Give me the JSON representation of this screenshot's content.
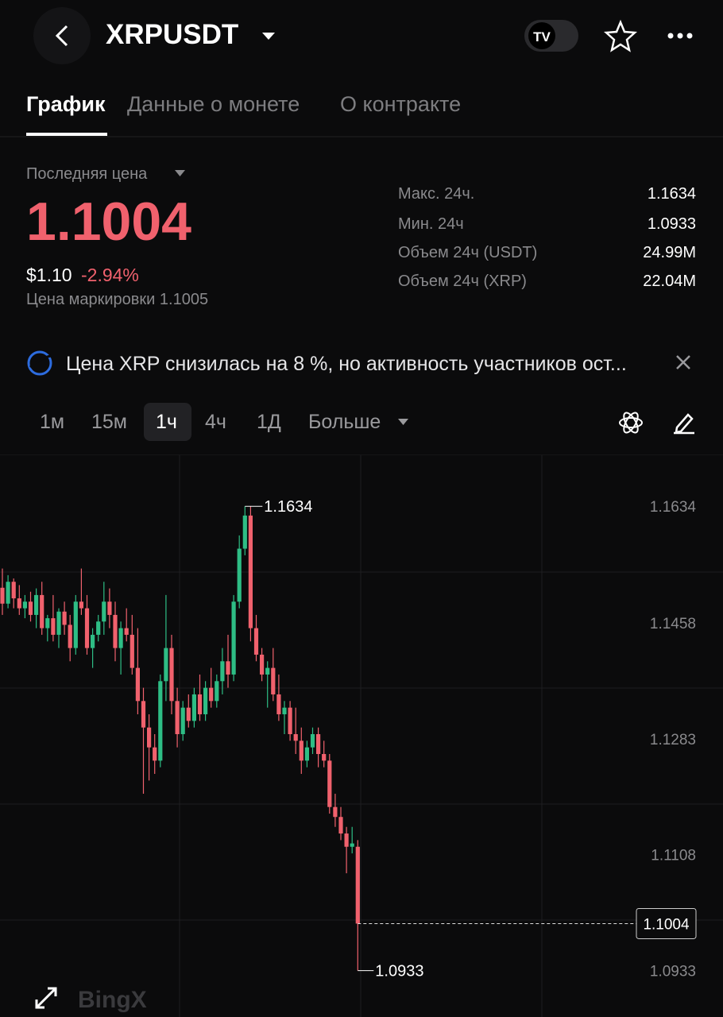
{
  "header": {
    "title": "XRPUSDT"
  },
  "tabs": [
    "График",
    "Данные о монете",
    "О контракте"
  ],
  "price_panel": {
    "last_price_label": "Последняя цена",
    "last_price": "1.1004",
    "usd_price": "$1.10",
    "change": "-2.94%",
    "mark_price": "Цена маркировки 1.1005",
    "stats": [
      {
        "label": "Макс. 24ч.",
        "value": "1.1634"
      },
      {
        "label": "Мин. 24ч",
        "value": "1.0933"
      },
      {
        "label": "Объем 24ч (USDT)",
        "value": "24.99M"
      },
      {
        "label": "Объем 24ч (XRP)",
        "value": "22.04M"
      }
    ]
  },
  "news": "Цена XRP снизилась на 8 %, но активность участников ост...",
  "timeframes": [
    "1м",
    "15м",
    "1ч",
    "4ч",
    "1Д",
    "Больше"
  ],
  "watermark": "BingX",
  "chart_data": {
    "type": "candlestick",
    "up_color": "#2ebd85",
    "down_color": "#f0616d",
    "ylim": [
      1.0863,
      1.1711
    ],
    "yticks": [
      1.1634,
      1.1458,
      1.1283,
      1.1108,
      1.0933
    ],
    "max_marker": 1.1634,
    "min_marker": 1.0933,
    "last_price_marker": 1.1004,
    "open": [
      1.1511,
      1.1487,
      1.152,
      1.1495,
      1.148,
      1.149,
      1.147,
      1.15,
      1.145,
      1.1465,
      1.144,
      1.1475,
      1.1455,
      1.142,
      1.149,
      1.148,
      1.142,
      1.144,
      1.146,
      1.149,
      1.147,
      1.142,
      1.145,
      1.144,
      1.139,
      1.134,
      1.13,
      1.127,
      1.125,
      1.137,
      1.142,
      1.134,
      1.129,
      1.133,
      1.131,
      1.135,
      1.132,
      1.136,
      1.134,
      1.137,
      1.14,
      1.138,
      1.149,
      1.157,
      1.162,
      1.145,
      1.141,
      1.138,
      1.139,
      1.135,
      1.132,
      1.133,
      1.129,
      1.128,
      1.125,
      1.127,
      1.129,
      1.126,
      1.125,
      1.118,
      1.1165,
      1.114,
      1.112,
      1.112
    ],
    "high": [
      1.154,
      1.153,
      1.1525,
      1.1515,
      1.15,
      1.1505,
      1.151,
      1.152,
      1.147,
      1.15,
      1.148,
      1.149,
      1.147,
      1.15,
      1.154,
      1.15,
      1.145,
      1.147,
      1.152,
      1.151,
      1.149,
      1.146,
      1.148,
      1.147,
      1.145,
      1.136,
      1.132,
      1.129,
      1.138,
      1.15,
      1.144,
      1.136,
      1.134,
      1.135,
      1.136,
      1.138,
      1.137,
      1.139,
      1.138,
      1.142,
      1.144,
      1.15,
      1.159,
      1.1634,
      1.1634,
      1.147,
      1.142,
      1.14,
      1.142,
      1.138,
      1.134,
      1.134,
      1.133,
      1.13,
      1.128,
      1.13,
      1.13,
      1.128,
      1.126,
      1.12,
      1.118,
      1.115,
      1.115,
      1.113
    ],
    "low": [
      1.147,
      1.148,
      1.148,
      1.147,
      1.1465,
      1.146,
      1.145,
      1.144,
      1.143,
      1.143,
      1.142,
      1.144,
      1.14,
      1.141,
      1.147,
      1.141,
      1.139,
      1.143,
      1.144,
      1.145,
      1.14,
      1.138,
      1.143,
      1.138,
      1.132,
      1.12,
      1.122,
      1.123,
      1.124,
      1.134,
      1.132,
      1.127,
      1.128,
      1.13,
      1.13,
      1.131,
      1.131,
      1.133,
      1.133,
      1.135,
      1.136,
      1.137,
      1.148,
      1.156,
      1.143,
      1.14,
      1.137,
      1.133,
      1.134,
      1.131,
      1.129,
      1.128,
      1.126,
      1.123,
      1.124,
      1.126,
      1.124,
      1.124,
      1.117,
      1.115,
      1.113,
      1.108,
      1.111,
      1.0933
    ],
    "close": [
      1.1487,
      1.152,
      1.1495,
      1.148,
      1.149,
      1.147,
      1.15,
      1.145,
      1.1465,
      1.144,
      1.1475,
      1.1455,
      1.142,
      1.149,
      1.148,
      1.142,
      1.144,
      1.146,
      1.149,
      1.147,
      1.142,
      1.145,
      1.144,
      1.139,
      1.134,
      1.13,
      1.127,
      1.125,
      1.137,
      1.142,
      1.134,
      1.129,
      1.133,
      1.131,
      1.135,
      1.132,
      1.136,
      1.134,
      1.137,
      1.14,
      1.138,
      1.149,
      1.157,
      1.162,
      1.145,
      1.141,
      1.138,
      1.139,
      1.135,
      1.132,
      1.133,
      1.129,
      1.128,
      1.125,
      1.127,
      1.129,
      1.126,
      1.125,
      1.118,
      1.1165,
      1.114,
      1.112,
      1.1125,
      1.1004
    ]
  }
}
